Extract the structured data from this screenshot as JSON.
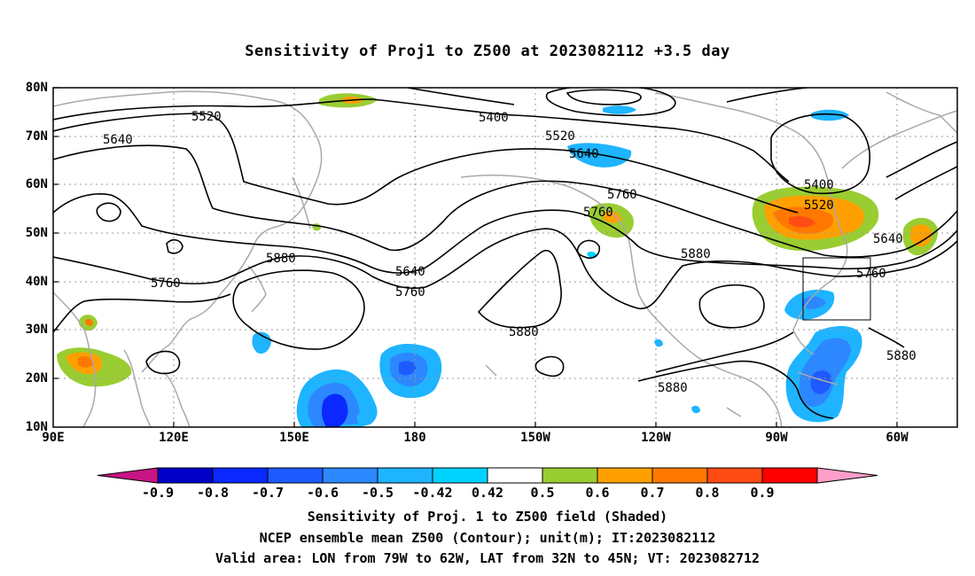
{
  "title": "Sensitivity of Proj1 to Z500 at 2023082112 +3.5 day",
  "lat_labels": [
    "80N",
    "70N",
    "60N",
    "50N",
    "40N",
    "30N",
    "20N",
    "10N"
  ],
  "lon_labels": [
    "90E",
    "120E",
    "150E",
    "180",
    "150W",
    "120W",
    "90W",
    "60W"
  ],
  "contour_labels": [
    "5520",
    "5640",
    "5760",
    "5880",
    "5400",
    "5520",
    "5640",
    "5760",
    "5760",
    "5880",
    "5640",
    "5760",
    "5880",
    "5400",
    "5520",
    "5640",
    "5760",
    "5880",
    "5880"
  ],
  "colorbar": {
    "colors": [
      "#c71585",
      "#0000c8",
      "#0a28ff",
      "#1e5aff",
      "#2d87ff",
      "#1eb4ff",
      "#00d2ff",
      "#ffffff",
      "#9acd32",
      "#ffa000",
      "#ff7800",
      "#ff4b14",
      "#ff0000",
      "#ff9ec8"
    ],
    "ticks": [
      "-0.9",
      "-0.8",
      "-0.7",
      "-0.6",
      "-0.5",
      "-0.42",
      "0.42",
      "0.5",
      "0.6",
      "0.7",
      "0.8",
      "0.9"
    ]
  },
  "footer": {
    "line1": "Sensitivity of Proj. 1 to Z500 field (Shaded)",
    "line2": "NCEP ensemble mean Z500 (Contour); unit(m); IT:2023082112",
    "line3": "Valid area: LON from 79W to 62W, LAT from 32N to 45N; VT: 2023082712"
  }
}
